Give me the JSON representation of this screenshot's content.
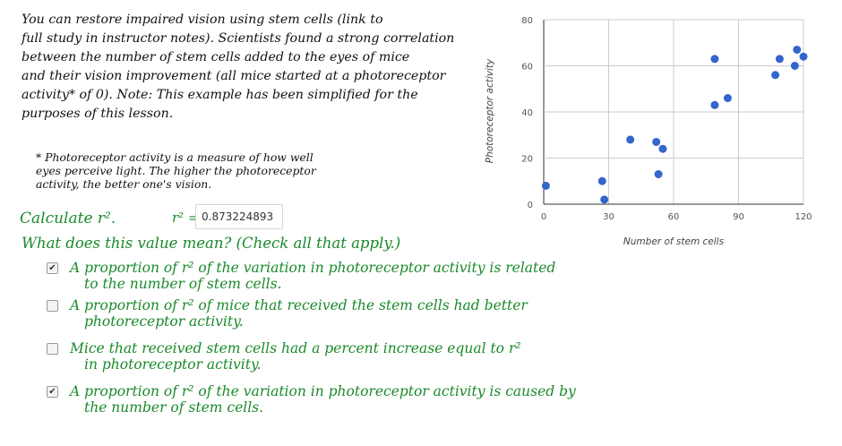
{
  "intro": {
    "line1": "You can restore impaired vision using stem cells (link to",
    "line2": "full study in instructor notes). Scientists found a strong correlation",
    "line3": "between the number of stem cells added to the eyes of mice",
    "line4": "and their vision improvement (all mice started at a photoreceptor",
    "line5": "activity* of 0).   Note: This example has been simplified for the",
    "line6": "purposes of this lesson."
  },
  "footnote": {
    "line1": "* Photoreceptor activity is a measure of how well",
    "line2": "eyes perceive light. The higher the photoreceptor",
    "line3": "activity, the better one's vision."
  },
  "calc": {
    "label": "Calculate r².",
    "r2_label": "r² =",
    "r2_value": "0.873224893"
  },
  "question": "What does this value mean? (Check all that apply.)",
  "options": [
    {
      "checked": true,
      "line1": "A proportion of r² of the variation in photoreceptor activity is related",
      "line2": "to the number of stem cells."
    },
    {
      "checked": false,
      "line1": "A proportion of r² of mice that received the stem cells had better",
      "line2": "photoreceptor activity."
    },
    {
      "checked": false,
      "line1": "Mice that received stem cells had a percent increase equal to r²",
      "line2": "in photoreceptor activity."
    },
    {
      "checked": true,
      "line1": "A proportion of r² of the variation in photoreceptor activity is caused by",
      "line2": "the number of stem cells."
    }
  ],
  "chart_data": {
    "type": "scatter",
    "xlabel": "Number of stem cells",
    "ylabel": "Photoreceptor activity",
    "xlim": [
      0,
      120
    ],
    "ylim": [
      0,
      80
    ],
    "x_ticks": [
      "0",
      "30",
      "60",
      "90",
      "120"
    ],
    "y_ticks": [
      "0",
      "20",
      "40",
      "60",
      "80"
    ],
    "grid": true,
    "point_color": "#3366cc",
    "points": [
      {
        "x": 1,
        "y": 8
      },
      {
        "x": 27,
        "y": 10
      },
      {
        "x": 28,
        "y": 2
      },
      {
        "x": 40,
        "y": 28
      },
      {
        "x": 52,
        "y": 27
      },
      {
        "x": 55,
        "y": 24
      },
      {
        "x": 53,
        "y": 13
      },
      {
        "x": 79,
        "y": 63
      },
      {
        "x": 79,
        "y": 43
      },
      {
        "x": 85,
        "y": 46
      },
      {
        "x": 107,
        "y": 56
      },
      {
        "x": 109,
        "y": 63
      },
      {
        "x": 116,
        "y": 60
      },
      {
        "x": 117,
        "y": 67
      },
      {
        "x": 120,
        "y": 64
      }
    ]
  }
}
